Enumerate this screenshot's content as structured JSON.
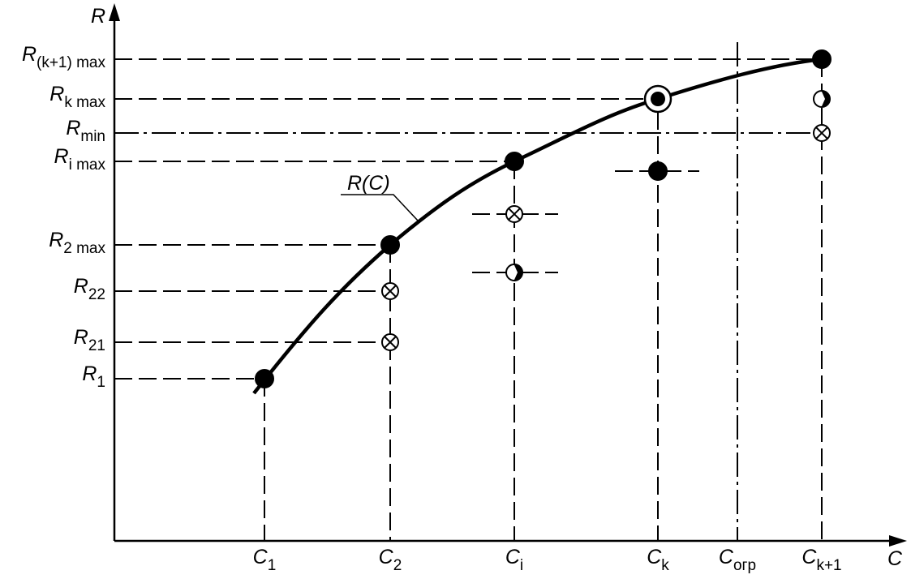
{
  "axes": {
    "y": "R",
    "x": "C"
  },
  "curve_label": "R(C)",
  "y_labels": [
    {
      "base": "R",
      "sub": "(k+1)  max"
    },
    {
      "base": "R",
      "sub": "k  max"
    },
    {
      "base": "R",
      "sub": "min"
    },
    {
      "base": "R",
      "sub": "i  max"
    },
    {
      "base": "R",
      "sub": "2  max"
    },
    {
      "base": "R",
      "sub": "22"
    },
    {
      "base": "R",
      "sub": "21"
    },
    {
      "base": "R",
      "sub": "1"
    }
  ],
  "x_labels": [
    {
      "base": "C",
      "sub": "1"
    },
    {
      "base": "C",
      "sub": "2"
    },
    {
      "base": "C",
      "sub": "i"
    },
    {
      "base": "C",
      "sub": "k"
    },
    {
      "base": "C",
      "sub": "огр"
    },
    {
      "base": "C",
      "sub": "k+1"
    }
  ]
}
